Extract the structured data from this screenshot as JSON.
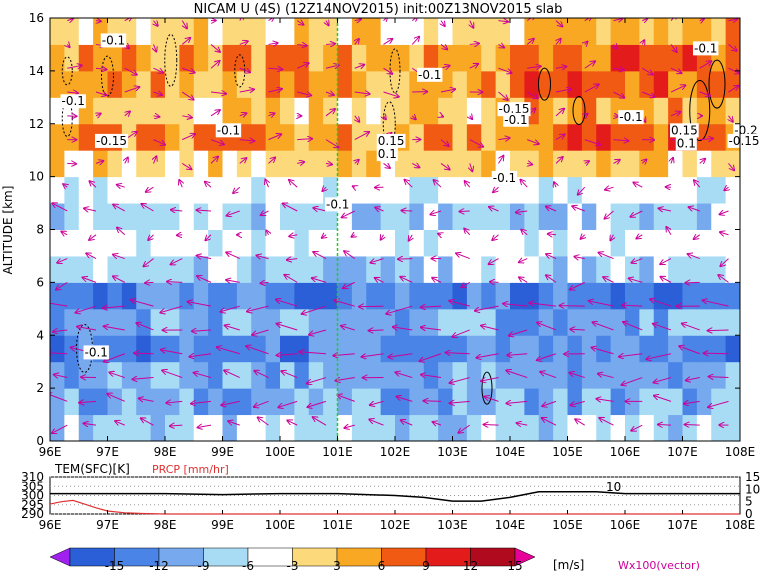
{
  "chart_data": [
    {
      "type": "heatmap",
      "title": "NICAM U (4S) (12Z14NOV2015) init:00Z13NOV2015 slab",
      "ylabel": "ALTITUDE [km]",
      "xlabel": "",
      "x_ticks": [
        "96E",
        "97E",
        "98E",
        "99E",
        "100E",
        "101E",
        "102E",
        "103E",
        "104E",
        "105E",
        "106E",
        "107E",
        "108E"
      ],
      "xlim": [
        96,
        108
      ],
      "y_ticks": [
        "0",
        "2",
        "4",
        "6",
        "8",
        "10",
        "12",
        "14",
        "16"
      ],
      "ylim": [
        0,
        16
      ],
      "marker_line_x": 101,
      "altitude_km": [
        0.5,
        1.5,
        2.5,
        3.5,
        4.5,
        5.5,
        6.5,
        7.5,
        8.5,
        9.5,
        10.5,
        11.5,
        12.5,
        13.5,
        14.5,
        15.5
      ],
      "band_u_ms": [
        -6,
        -9,
        -9,
        -12,
        -9,
        -12,
        -6,
        -3,
        -6,
        -3,
        3,
        6,
        3,
        6,
        6,
        3
      ],
      "contour_labels": [
        "-0.1",
        "-0.1",
        "-0.1",
        "-0.15",
        "-0.1",
        "-0.1",
        "0.15",
        "0.1",
        "-0.15",
        "-0.1",
        "-0.1",
        "-0.1",
        "-0.1",
        "0.15",
        "-0.2",
        "0.1",
        "-0.15",
        "-0.1"
      ],
      "vector_label": "Wx100(vector)"
    },
    {
      "type": "line",
      "series": [
        {
          "name": "TEM(SFC)[K]",
          "color": "#000000",
          "x": [
            96,
            97,
            98,
            99,
            100,
            101,
            102,
            102.5,
            103,
            103.5,
            104,
            104.5,
            105,
            105.5,
            106,
            106.5,
            107,
            108
          ],
          "values": [
            301,
            301,
            301,
            300.5,
            301,
            301,
            300,
            299,
            297,
            297,
            299,
            302,
            302,
            302,
            301,
            301,
            301,
            301
          ]
        },
        {
          "name": "PRCP [mm/hr]",
          "color": "#e03030",
          "x": [
            96,
            96.2,
            96.4,
            96.6,
            96.8,
            97,
            97.3,
            97.6,
            98,
            108
          ],
          "values": [
            4,
            5,
            5.5,
            4,
            2.5,
            1.2,
            0.5,
            0.2,
            0,
            0
          ]
        }
      ],
      "left_ticks": [
        "310",
        "305",
        "300",
        "295",
        "290"
      ],
      "left_ylim": [
        290,
        310
      ],
      "right_ticks": [
        "15",
        "10",
        "5",
        "0"
      ],
      "right_ylim": [
        0,
        15
      ],
      "x_ticks": [
        "96E",
        "97E",
        "98E",
        "99E",
        "100E",
        "101E",
        "102E",
        "103E",
        "104E",
        "105E",
        "106E",
        "107E",
        "108E"
      ],
      "inline_label": "10"
    },
    {
      "type": "colorbar",
      "levels": [
        "-15",
        "-12",
        "-9",
        "-6",
        "-3",
        "3",
        "6",
        "9",
        "12",
        "15"
      ],
      "colors": [
        "#a020f0",
        "#2a5fd8",
        "#4a84e6",
        "#76a9ee",
        "#a8dcf5",
        "#ffffff",
        "#fcd97a",
        "#f8a823",
        "#f05a12",
        "#e31b1b",
        "#b00a1f",
        "#e60099"
      ],
      "unit": "[m/s]"
    }
  ]
}
